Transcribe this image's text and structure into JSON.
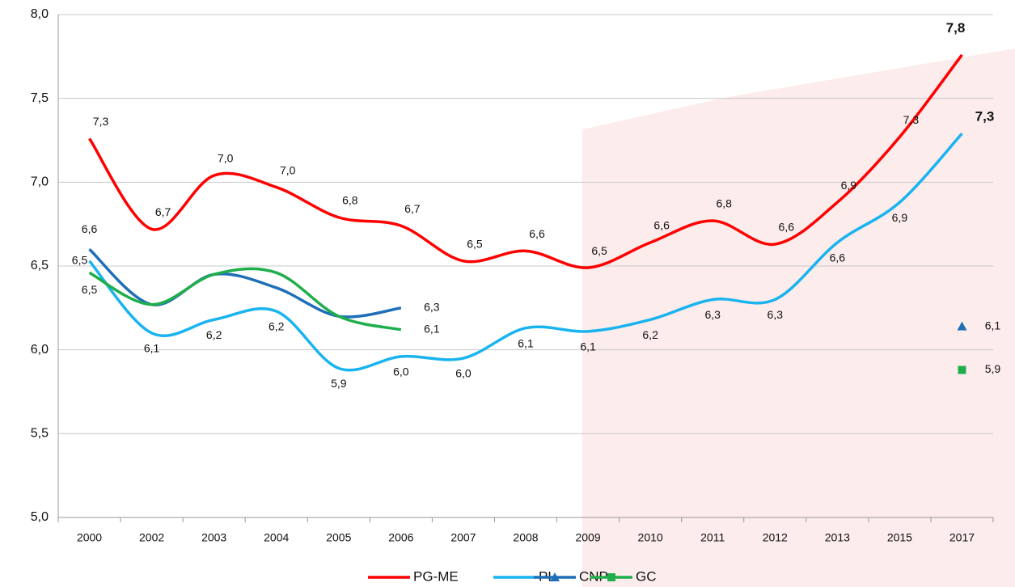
{
  "chart_data": {
    "type": "line",
    "categories": [
      "2000",
      "2002",
      "2003",
      "2004",
      "2005",
      "2006",
      "2007",
      "2008",
      "2009",
      "2010",
      "2011",
      "2012",
      "2013",
      "2015",
      "2017"
    ],
    "ylim": [
      5,
      8
    ],
    "yticks": [
      {
        "value": 5,
        "label": "5,0"
      },
      {
        "value": 5.5,
        "label": "5,5"
      },
      {
        "value": 6,
        "label": "6,0"
      },
      {
        "value": 6.5,
        "label": "6,5"
      },
      {
        "value": 7,
        "label": "7,0"
      },
      {
        "value": 7.5,
        "label": "7,5"
      },
      {
        "value": 8,
        "label": "8,0"
      }
    ],
    "grid": true,
    "legend": "bottom",
    "series": [
      {
        "name": "PG-ME",
        "color": "#ff0000",
        "values": [
          7.26,
          6.72,
          7.04,
          6.97,
          6.79,
          6.74,
          6.53,
          6.59,
          6.49,
          6.64,
          6.77,
          6.63,
          6.88,
          7.27,
          7.76
        ],
        "value_labels": [
          "7,3",
          "6,7",
          "7,0",
          "7,0",
          "6,8",
          "6,7",
          "6,5",
          "6,6",
          "6,5",
          "6,6",
          "6,8",
          "6,6",
          "6,9",
          "7,3",
          "7,8"
        ]
      },
      {
        "name": "PL",
        "color": "#19b4f0",
        "values": [
          6.53,
          6.1,
          6.18,
          6.23,
          5.89,
          5.96,
          5.95,
          6.13,
          6.11,
          6.18,
          6.3,
          6.3,
          6.64,
          6.88,
          7.29
        ],
        "value_labels": [
          "6,5",
          "6,1",
          "6,2",
          "6,2",
          "5,9",
          "6,0",
          "6,0",
          "6,1",
          "6,1",
          "6,2",
          "6,3",
          "6,3",
          "6,6",
          "6,9",
          "7,3"
        ]
      },
      {
        "name": "CNP",
        "color": "#1f6fb8",
        "marker": "triangle",
        "values": [
          6.6,
          6.27,
          6.45,
          6.37,
          6.2,
          6.25,
          null,
          null,
          null,
          null,
          null,
          null,
          null,
          null,
          6.14
        ],
        "value_labels": [
          "6,6",
          null,
          null,
          null,
          null,
          "6,3",
          null,
          null,
          null,
          null,
          null,
          null,
          null,
          null,
          "6,1"
        ]
      },
      {
        "name": "GC",
        "color": "#1fae4b",
        "marker": "square",
        "values": [
          6.46,
          6.27,
          6.45,
          6.46,
          6.2,
          6.12,
          null,
          null,
          null,
          null,
          null,
          null,
          null,
          null,
          5.88
        ],
        "value_labels": [
          "6,5",
          null,
          null,
          null,
          null,
          "6,1",
          null,
          null,
          null,
          null,
          null,
          null,
          null,
          null,
          "5,9"
        ]
      }
    ]
  }
}
